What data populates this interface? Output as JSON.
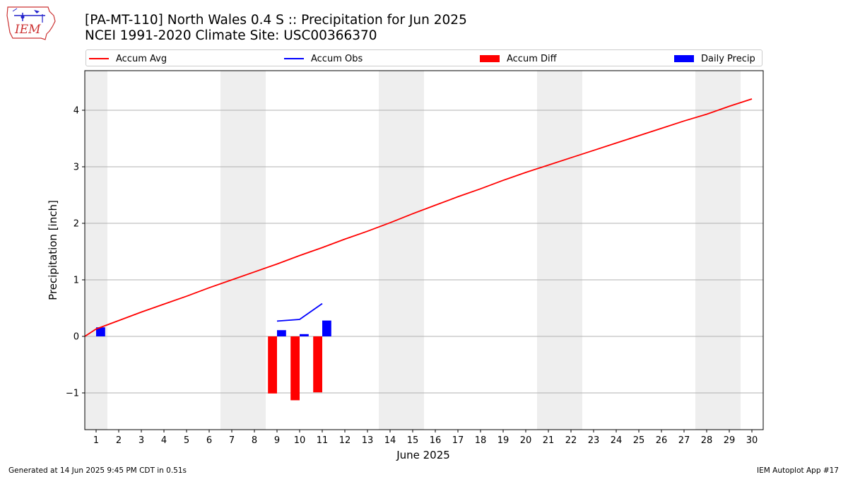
{
  "header": {
    "title_line1": "[PA-MT-110] North Wales 0.4 S :: Precipitation for Jun 2025",
    "title_line2": "NCEI 1991-2020 Climate Site: USC00366370"
  },
  "logo": {
    "text": "IEM",
    "icon": "iowa-state-map-icon"
  },
  "footer": {
    "left": "Generated at 14 Jun 2025 9:45 PM CDT in 0.51s",
    "right": "IEM Autoplot App #17"
  },
  "colors": {
    "avg": "#ff0000",
    "obs": "#0000ff",
    "diff": "#ff0000",
    "daily": "#0000ff",
    "weekend": "#eeeeee",
    "grid": "#b0b0b0"
  },
  "chart_data": {
    "type": "bar",
    "title": "[PA-MT-110] North Wales 0.4 S :: Precipitation for Jun 2025",
    "xlabel": "June 2025",
    "ylabel": "Precipitation [inch]",
    "xlim": [
      0.5,
      30.5
    ],
    "ylim": [
      -1.65,
      4.7
    ],
    "yticks": [
      -1,
      0,
      1,
      2,
      3,
      4
    ],
    "ytick_labels": [
      "−1",
      "0",
      "1",
      "2",
      "3",
      "4"
    ],
    "x": [
      1,
      2,
      3,
      4,
      5,
      6,
      7,
      8,
      9,
      10,
      11,
      12,
      13,
      14,
      15,
      16,
      17,
      18,
      19,
      20,
      21,
      22,
      23,
      24,
      25,
      26,
      27,
      28,
      29,
      30
    ],
    "xtick_labels": [
      "1",
      "2",
      "3",
      "4",
      "5",
      "6",
      "7",
      "8",
      "9",
      "10",
      "11",
      "12",
      "13",
      "14",
      "15",
      "16",
      "17",
      "18",
      "19",
      "20",
      "21",
      "22",
      "23",
      "24",
      "25",
      "26",
      "27",
      "28",
      "29",
      "30"
    ],
    "weekend_days": [
      1,
      7,
      8,
      14,
      15,
      21,
      22,
      28,
      29
    ],
    "grid": true,
    "legend_position": "top",
    "legend": [
      "Accum Avg",
      "Accum Obs",
      "Accum Diff",
      "Daily Precip"
    ],
    "series": [
      {
        "name": "Accum Avg",
        "kind": "line",
        "color": "#ff0000",
        "x": [
          0.5,
          1,
          2,
          3,
          4,
          5,
          6,
          7,
          8,
          9,
          10,
          11,
          12,
          13,
          14,
          15,
          16,
          17,
          18,
          19,
          20,
          21,
          22,
          23,
          24,
          25,
          26,
          27,
          28,
          29,
          30
        ],
        "values": [
          0.0,
          0.13,
          0.28,
          0.43,
          0.57,
          0.71,
          0.86,
          1.0,
          1.14,
          1.28,
          1.43,
          1.57,
          1.72,
          1.86,
          2.01,
          2.17,
          2.32,
          2.47,
          2.61,
          2.76,
          2.9,
          3.03,
          3.16,
          3.29,
          3.42,
          3.55,
          3.68,
          3.81,
          3.93,
          4.07,
          4.2
        ]
      },
      {
        "name": "Accum Obs",
        "kind": "line",
        "color": "#0000ff",
        "x": [
          9,
          10,
          11
        ],
        "values": [
          0.27,
          0.3,
          0.58
        ]
      },
      {
        "name": "Accum Diff",
        "kind": "bar",
        "color": "#ff0000",
        "x": [
          9,
          10,
          11
        ],
        "values": [
          -1.01,
          -1.13,
          -0.99
        ]
      },
      {
        "name": "Daily Precip",
        "kind": "bar",
        "color": "#0000ff",
        "x": [
          1,
          9,
          10,
          11
        ],
        "values": [
          0.16,
          0.11,
          0.04,
          0.28
        ]
      }
    ]
  }
}
